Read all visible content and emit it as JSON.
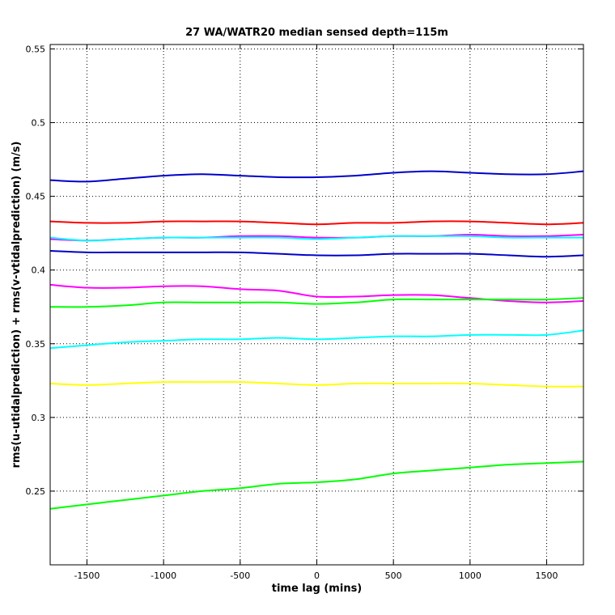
{
  "chart_data": {
    "type": "line",
    "title": "27 WA/WATR20 median sensed depth=115m",
    "xlabel": "time lag (mins)",
    "ylabel": "rms(u-utidalprediction) + rms(v-vtidalprediction) (m/s)",
    "xlim": [
      -1740,
      1740
    ],
    "ylim": [
      0.2,
      0.553
    ],
    "xticks": [
      -1500,
      -1000,
      -500,
      0,
      500,
      1000,
      1500
    ],
    "xtick_labels": [
      "-1500",
      "-1000",
      "-500",
      "0",
      "500",
      "1000",
      "1500"
    ],
    "yticks": [
      0.25,
      0.3,
      0.35,
      0.4,
      0.45,
      0.5,
      0.55
    ],
    "ytick_labels": [
      "0.25",
      "0.3",
      "0.35",
      "0.4",
      "0.45",
      "0.5",
      "0.55"
    ],
    "grid": true,
    "x": [
      -1740,
      -1500,
      -1250,
      -1000,
      -750,
      -500,
      -250,
      0,
      250,
      500,
      750,
      1000,
      1250,
      1500,
      1740
    ],
    "series": [
      {
        "color": "#0000c8",
        "values": [
          0.461,
          0.46,
          0.462,
          0.464,
          0.465,
          0.464,
          0.463,
          0.463,
          0.464,
          0.466,
          0.467,
          0.466,
          0.465,
          0.465,
          0.467
        ]
      },
      {
        "color": "#ff0000",
        "values": [
          0.433,
          0.432,
          0.432,
          0.433,
          0.433,
          0.433,
          0.432,
          0.431,
          0.432,
          0.432,
          0.433,
          0.433,
          0.432,
          0.431,
          0.432
        ]
      },
      {
        "color": "#ff00ff",
        "values": [
          0.421,
          0.42,
          0.421,
          0.422,
          0.422,
          0.423,
          0.423,
          0.422,
          0.422,
          0.423,
          0.423,
          0.424,
          0.423,
          0.423,
          0.424
        ]
      },
      {
        "color": "#00ffff",
        "values": [
          0.422,
          0.42,
          0.421,
          0.422,
          0.422,
          0.422,
          0.422,
          0.421,
          0.422,
          0.423,
          0.423,
          0.423,
          0.422,
          0.422,
          0.422
        ]
      },
      {
        "color": "#0000c8",
        "values": [
          0.413,
          0.412,
          0.412,
          0.412,
          0.412,
          0.412,
          0.411,
          0.41,
          0.41,
          0.411,
          0.411,
          0.411,
          0.41,
          0.409,
          0.41
        ]
      },
      {
        "color": "#ff00ff",
        "values": [
          0.39,
          0.388,
          0.388,
          0.389,
          0.389,
          0.387,
          0.386,
          0.382,
          0.382,
          0.383,
          0.383,
          0.381,
          0.379,
          0.378,
          0.379
        ]
      },
      {
        "color": "#00ff00",
        "values": [
          0.375,
          0.375,
          0.376,
          0.378,
          0.378,
          0.378,
          0.378,
          0.377,
          0.378,
          0.38,
          0.38,
          0.38,
          0.38,
          0.38,
          0.381
        ]
      },
      {
        "color": "#00ffff",
        "values": [
          0.347,
          0.349,
          0.351,
          0.352,
          0.353,
          0.353,
          0.354,
          0.353,
          0.354,
          0.355,
          0.355,
          0.356,
          0.356,
          0.356,
          0.359
        ]
      },
      {
        "color": "#ffff00",
        "values": [
          0.323,
          0.322,
          0.323,
          0.324,
          0.324,
          0.324,
          0.323,
          0.322,
          0.323,
          0.323,
          0.323,
          0.323,
          0.322,
          0.321,
          0.321
        ]
      },
      {
        "color": "#00ff00",
        "values": [
          0.238,
          0.241,
          0.244,
          0.247,
          0.25,
          0.252,
          0.255,
          0.256,
          0.258,
          0.262,
          0.264,
          0.266,
          0.268,
          0.269,
          0.27
        ]
      }
    ]
  }
}
